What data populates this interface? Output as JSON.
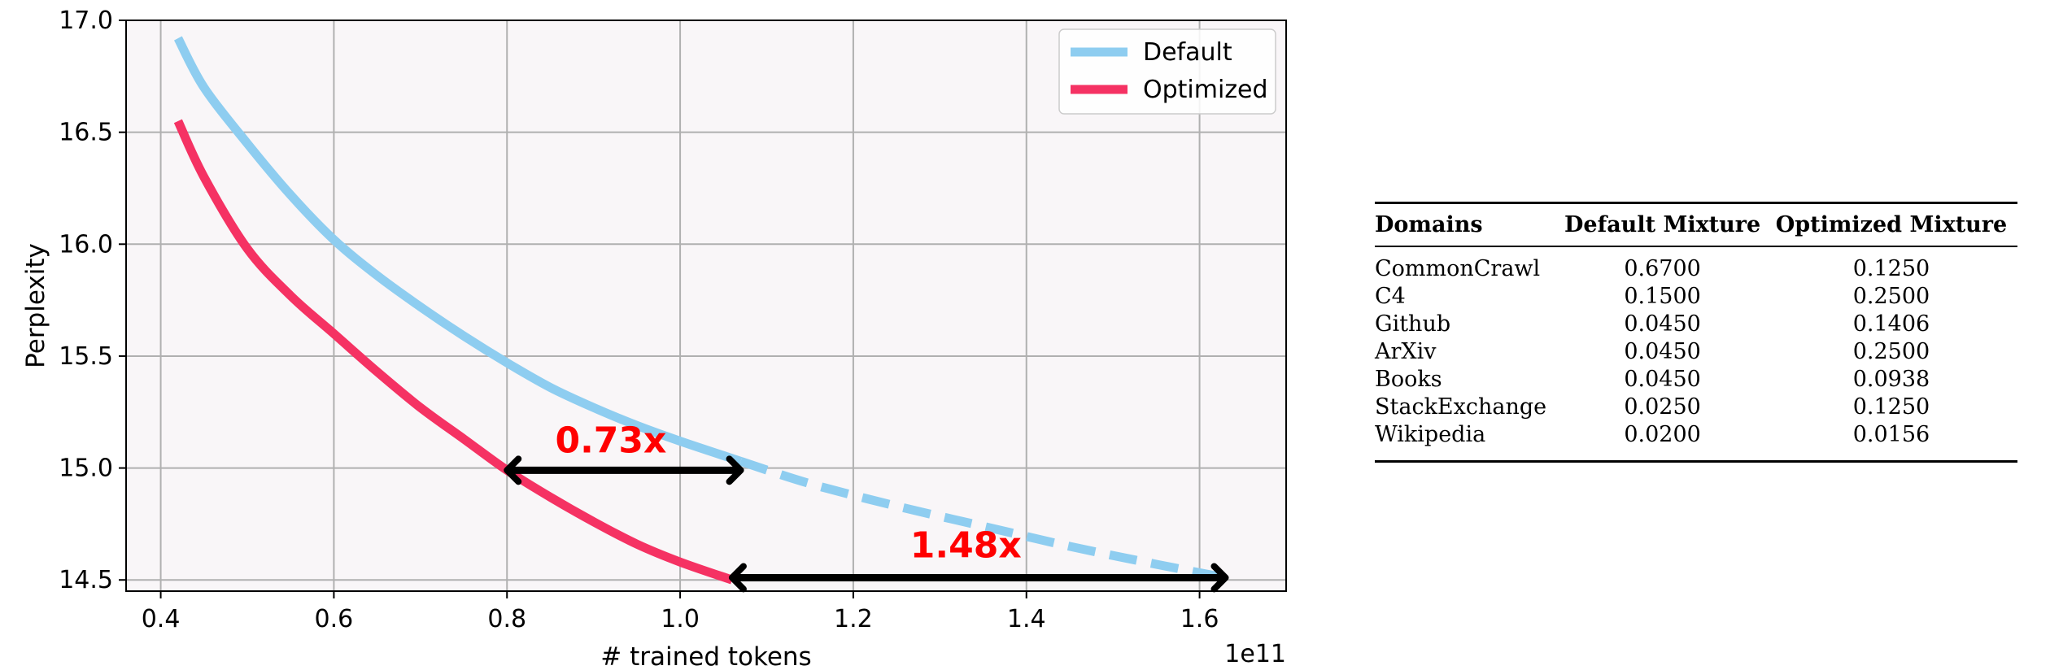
{
  "chart_data": {
    "type": "line",
    "title": "",
    "xlabel": "# trained tokens",
    "ylabel": "Perplexity",
    "x_offset_label": "1e11",
    "xlim": [
      0.36,
      1.7
    ],
    "ylim": [
      14.45,
      17.0
    ],
    "x_ticks": [
      0.4,
      0.6,
      0.8,
      1.0,
      1.2,
      1.4,
      1.6
    ],
    "x_tick_labels": [
      "0.4",
      "0.6",
      "0.8",
      "1.0",
      "1.2",
      "1.4",
      "1.6"
    ],
    "y_ticks": [
      14.5,
      15.0,
      15.5,
      16.0,
      16.5,
      17.0
    ],
    "y_tick_labels": [
      "14.5",
      "15.0",
      "15.5",
      "16.0",
      "16.5",
      "17.0"
    ],
    "grid": true,
    "legend_position": "top-right",
    "series": [
      {
        "name": "Default",
        "color": "#8ecdf0",
        "style": "solid",
        "x": [
          0.42,
          0.45,
          0.5,
          0.55,
          0.6,
          0.65,
          0.7,
          0.75,
          0.8,
          0.85,
          0.9,
          0.95,
          1.0,
          1.07
        ],
        "y": [
          16.92,
          16.7,
          16.45,
          16.22,
          16.02,
          15.86,
          15.72,
          15.59,
          15.47,
          15.36,
          15.27,
          15.19,
          15.12,
          15.03
        ]
      },
      {
        "name": "",
        "color": "#8ecdf0",
        "style": "dashed",
        "x": [
          1.07,
          1.15,
          1.25,
          1.35,
          1.45,
          1.55,
          1.63
        ],
        "y": [
          15.03,
          14.93,
          14.83,
          14.74,
          14.65,
          14.57,
          14.51
        ]
      },
      {
        "name": "Optimized",
        "color": "#f53263",
        "style": "solid",
        "x": [
          0.42,
          0.45,
          0.5,
          0.55,
          0.6,
          0.65,
          0.7,
          0.75,
          0.8,
          0.85,
          0.9,
          0.95,
          1.0,
          1.06
        ],
        "y": [
          16.55,
          16.3,
          15.98,
          15.77,
          15.6,
          15.43,
          15.27,
          15.13,
          14.99,
          14.87,
          14.76,
          14.66,
          14.58,
          14.5
        ]
      }
    ],
    "annotations": [
      {
        "text": "0.73x",
        "x": 0.92,
        "y": 15.07,
        "arrow_from": [
          0.8,
          14.99
        ],
        "arrow_to": [
          1.07,
          14.99
        ]
      },
      {
        "text": "1.48x",
        "x": 1.33,
        "y": 14.6,
        "arrow_from": [
          1.06,
          14.51
        ],
        "arrow_to": [
          1.63,
          14.51
        ]
      }
    ],
    "colors": {
      "arrow": "#000000",
      "annotation": "#ff0000",
      "grid": "#b0b0b0",
      "plot_bg": "#f9f6f8"
    }
  },
  "table": {
    "headers": [
      "Domains",
      "Default Mixture",
      "Optimized Mixture"
    ],
    "rows": [
      [
        "CommonCrawl",
        "0.6700",
        "0.1250"
      ],
      [
        "C4",
        "0.1500",
        "0.2500"
      ],
      [
        "Github",
        "0.0450",
        "0.1406"
      ],
      [
        "ArXiv",
        "0.0450",
        "0.2500"
      ],
      [
        "Books",
        "0.0450",
        "0.0938"
      ],
      [
        "StackExchange",
        "0.0250",
        "0.1250"
      ],
      [
        "Wikipedia",
        "0.0200",
        "0.0156"
      ]
    ]
  }
}
